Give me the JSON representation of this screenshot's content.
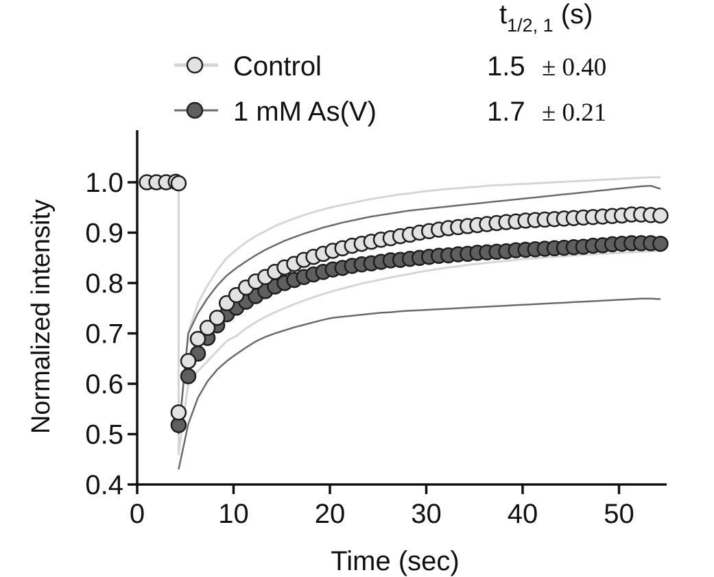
{
  "chart_data": {
    "type": "scatter",
    "title": "",
    "xlabel": "Time (sec)",
    "ylabel": "Normalized intensity",
    "xlim": [
      0,
      55
    ],
    "ylim": [
      0.4,
      1.08
    ],
    "x_ticks": [
      0,
      10,
      20,
      30,
      40,
      50
    ],
    "x_tick_labels": [
      "0",
      "10",
      "20",
      "30",
      "40",
      "50"
    ],
    "y_ticks": [
      0.4,
      0.5,
      0.6,
      0.7,
      0.8,
      0.9,
      1.0
    ],
    "y_tick_labels": [
      "0.4",
      "0.5",
      "0.6",
      "0.7",
      "0.8",
      "0.9",
      "1.0"
    ],
    "legend_header": {
      "base": "t",
      "sub": "1/2, 1",
      "tail": " (s)"
    },
    "series": [
      {
        "name": "Control",
        "marker_fill": "#e2e2e2",
        "band_color": "#d6d6d6",
        "t_half": "1.5",
        "t_half_err": "± 0.40",
        "x": [
          1.0,
          2.0,
          3.0,
          4.0,
          4.3,
          4.3,
          5.3,
          6.3,
          7.3,
          8.3,
          9.3,
          10.3,
          11.3,
          12.3,
          13.3,
          14.3,
          15.3,
          16.3,
          17.3,
          18.3,
          19.3,
          20.3,
          21.3,
          22.3,
          23.3,
          24.3,
          25.3,
          26.3,
          27.3,
          28.3,
          29.3,
          30.3,
          31.3,
          32.3,
          33.3,
          34.3,
          35.3,
          36.3,
          37.3,
          38.3,
          39.3,
          40.3,
          41.3,
          42.3,
          43.3,
          44.3,
          45.3,
          46.3,
          47.3,
          48.3,
          49.3,
          50.3,
          51.3,
          52.3,
          53.3,
          54.3
        ],
        "y": [
          1.0,
          1.0,
          1.0,
          1.001,
          0.998,
          0.543,
          0.645,
          0.689,
          0.711,
          0.731,
          0.76,
          0.776,
          0.791,
          0.803,
          0.812,
          0.822,
          0.831,
          0.838,
          0.846,
          0.852,
          0.858,
          0.864,
          0.869,
          0.874,
          0.878,
          0.882,
          0.886,
          0.889,
          0.893,
          0.896,
          0.9,
          0.903,
          0.906,
          0.909,
          0.911,
          0.913,
          0.915,
          0.917,
          0.919,
          0.921,
          0.922,
          0.924,
          0.925,
          0.926,
          0.927,
          0.928,
          0.929,
          0.93,
          0.931,
          0.932,
          0.933,
          0.934,
          0.936,
          0.936,
          0.935,
          0.934
        ],
        "upper": [
          1.0,
          1.0,
          1.0,
          1.01,
          1.012,
          0.5,
          0.7,
          0.76,
          0.795,
          0.825,
          0.85,
          0.866,
          0.881,
          0.893,
          0.903,
          0.913,
          0.921,
          0.928,
          0.935,
          0.941,
          0.946,
          0.951,
          0.955,
          0.959,
          0.963,
          0.967,
          0.97,
          0.973,
          0.976,
          0.978,
          0.981,
          0.983,
          0.985,
          0.987,
          0.988,
          0.99,
          0.991,
          0.993,
          0.994,
          0.995,
          0.996,
          0.997,
          0.998,
          0.999,
          1.0,
          1.001,
          1.002,
          1.003,
          1.004,
          1.005,
          1.006,
          1.007,
          1.008,
          1.009,
          1.01,
          1.01
        ],
        "lower": [
          1.0,
          1.0,
          1.0,
          0.99,
          0.984,
          0.46,
          0.6,
          0.625,
          0.645,
          0.665,
          0.685,
          0.695,
          0.71,
          0.722,
          0.733,
          0.742,
          0.75,
          0.758,
          0.765,
          0.772,
          0.778,
          0.784,
          0.789,
          0.794,
          0.799,
          0.803,
          0.807,
          0.811,
          0.815,
          0.818,
          0.822,
          0.825,
          0.828,
          0.831,
          0.833,
          0.836,
          0.838,
          0.84,
          0.842,
          0.844,
          0.846,
          0.848,
          0.849,
          0.851,
          0.852,
          0.853,
          0.855,
          0.856,
          0.857,
          0.858,
          0.859,
          0.86,
          0.861,
          0.862,
          0.863,
          0.864
        ]
      },
      {
        "name": "1 mM As(V)",
        "marker_fill": "#5f5f5f",
        "band_color": "#6a6a6a",
        "t_half": "1.7",
        "t_half_err": "± 0.21",
        "x": [
          4.3,
          5.3,
          6.3,
          7.3,
          8.3,
          9.3,
          10.3,
          11.3,
          12.3,
          13.3,
          14.3,
          15.3,
          16.3,
          17.3,
          18.3,
          19.3,
          20.3,
          21.3,
          22.3,
          23.3,
          24.3,
          25.3,
          26.3,
          27.3,
          28.3,
          29.3,
          30.3,
          31.3,
          32.3,
          33.3,
          34.3,
          35.3,
          36.3,
          37.3,
          38.3,
          39.3,
          40.3,
          41.3,
          42.3,
          43.3,
          44.3,
          45.3,
          46.3,
          47.3,
          48.3,
          49.3,
          50.3,
          51.3,
          52.3,
          53.3,
          54.3
        ],
        "y": [
          0.518,
          0.615,
          0.66,
          0.691,
          0.716,
          0.738,
          0.751,
          0.763,
          0.774,
          0.784,
          0.793,
          0.8,
          0.806,
          0.812,
          0.817,
          0.822,
          0.827,
          0.83,
          0.834,
          0.837,
          0.839,
          0.842,
          0.845,
          0.846,
          0.848,
          0.85,
          0.852,
          0.854,
          0.855,
          0.857,
          0.858,
          0.86,
          0.861,
          0.862,
          0.863,
          0.865,
          0.866,
          0.867,
          0.868,
          0.869,
          0.87,
          0.871,
          0.872,
          0.874,
          0.875,
          0.877,
          0.878,
          0.879,
          0.879,
          0.879,
          0.878
        ],
        "upper": [
          0.5,
          0.7,
          0.74,
          0.77,
          0.795,
          0.815,
          0.83,
          0.843,
          0.855,
          0.866,
          0.875,
          0.884,
          0.891,
          0.898,
          0.904,
          0.91,
          0.915,
          0.92,
          0.924,
          0.928,
          0.932,
          0.935,
          0.938,
          0.941,
          0.944,
          0.946,
          0.948,
          0.95,
          0.952,
          0.954,
          0.956,
          0.958,
          0.96,
          0.962,
          0.964,
          0.966,
          0.968,
          0.97,
          0.972,
          0.974,
          0.976,
          0.978,
          0.98,
          0.982,
          0.984,
          0.986,
          0.988,
          0.99,
          0.992,
          0.993,
          0.987
        ],
        "lower": [
          0.43,
          0.52,
          0.572,
          0.605,
          0.628,
          0.645,
          0.659,
          0.672,
          0.684,
          0.693,
          0.7,
          0.706,
          0.712,
          0.717,
          0.722,
          0.727,
          0.731,
          0.733,
          0.735,
          0.737,
          0.739,
          0.741,
          0.742,
          0.744,
          0.745,
          0.746,
          0.747,
          0.748,
          0.749,
          0.75,
          0.751,
          0.752,
          0.753,
          0.754,
          0.755,
          0.756,
          0.757,
          0.758,
          0.759,
          0.76,
          0.761,
          0.762,
          0.763,
          0.764,
          0.765,
          0.766,
          0.767,
          0.768,
          0.769,
          0.769,
          0.768
        ]
      }
    ]
  }
}
